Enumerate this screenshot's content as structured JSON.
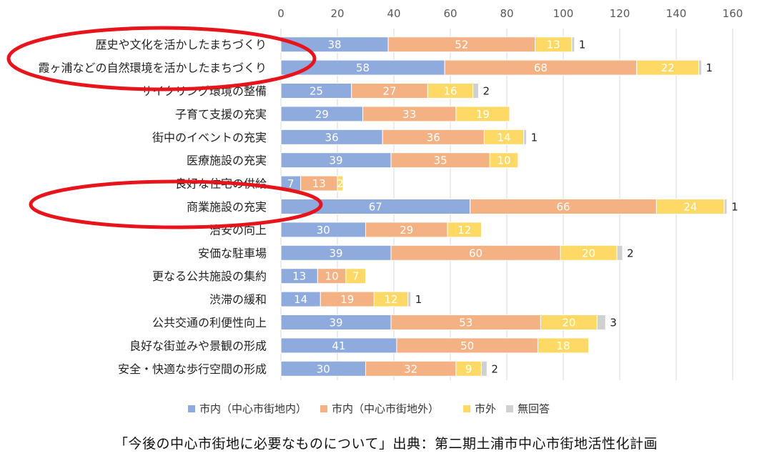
{
  "caption": "「今後の中心市街地に必要なものについて」出典：第二期土浦市中心市街地活性化計画",
  "chart_data": {
    "type": "bar",
    "orientation": "horizontal",
    "stacked": true,
    "xlim": [
      0,
      160
    ],
    "xticks": [
      0,
      20,
      40,
      60,
      80,
      100,
      120,
      140,
      160
    ],
    "grid": true,
    "legend_position": "bottom",
    "categories": [
      "歴史や文化を活かしたまちづくり",
      "霞ヶ浦などの自然環境を活かしたまちづくり",
      "サイクリング環境の整備",
      "子育て支援の充実",
      "街中のイベントの充実",
      "医療施設の充実",
      "良好な住宅の供給",
      "商業施設の充実",
      "治安の向上",
      "安価な駐車場",
      "更なる公共施設の集約",
      "渋滞の緩和",
      "公共交通の利便性向上",
      "良好な街並みや景観の形成",
      "安全・快適な歩行空間の形成"
    ],
    "series": [
      {
        "name": "市内（中心市街地内）",
        "color": "#8FAADC",
        "values": [
          38,
          58,
          25,
          29,
          36,
          39,
          7,
          67,
          30,
          39,
          13,
          14,
          39,
          41,
          30
        ]
      },
      {
        "name": "市内（中心市街地外）",
        "color": "#F4B183",
        "values": [
          52,
          68,
          27,
          33,
          36,
          35,
          13,
          66,
          29,
          60,
          10,
          19,
          53,
          50,
          32
        ]
      },
      {
        "name": "市外",
        "color": "#FFD966",
        "values": [
          13,
          22,
          16,
          19,
          14,
          10,
          2,
          24,
          12,
          20,
          7,
          12,
          20,
          18,
          9
        ]
      },
      {
        "name": "無回答",
        "color": "#D0D0D0",
        "values": [
          1,
          1,
          2,
          0,
          1,
          0,
          0,
          1,
          0,
          2,
          0,
          1,
          3,
          0,
          2
        ]
      }
    ],
    "highlights": [
      "歴史や文化を活かしたまちづくり",
      "霞ヶ浦などの自然環境を活かしたまちづくり",
      "商業施設の充実"
    ],
    "highlight_color": "#E8141B"
  }
}
